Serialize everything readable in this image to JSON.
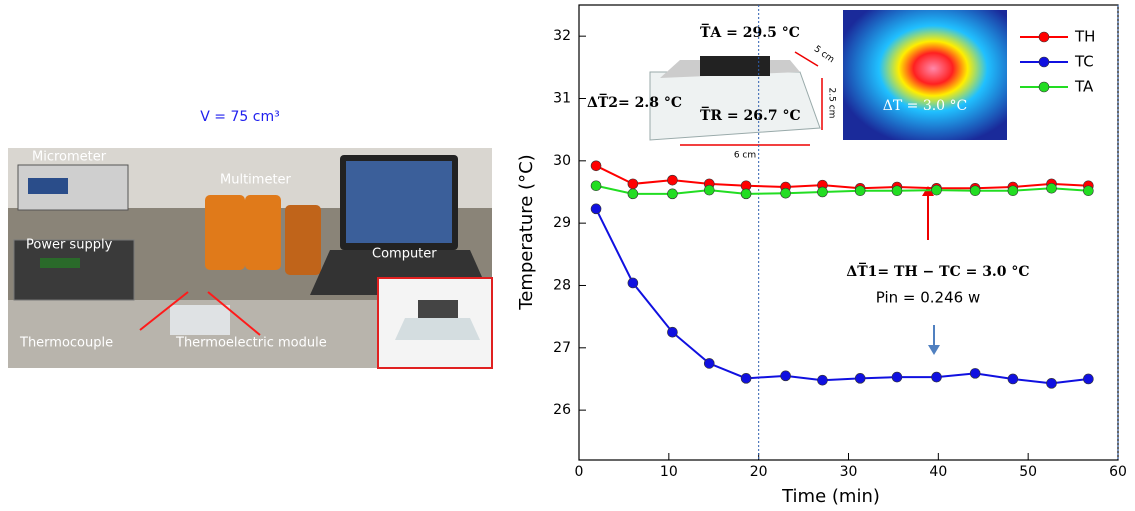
{
  "chart_data": {
    "type": "line",
    "xlabel": "Time (min)",
    "ylabel": "Temperature (°C)",
    "xlim": [
      0,
      60
    ],
    "xticks": [
      0,
      10,
      20,
      30,
      40,
      50,
      60
    ],
    "ylim": [
      25.2,
      32.5
    ],
    "yticks": [
      26,
      27,
      28,
      29,
      30,
      31,
      32
    ],
    "reference_lines_x": [
      20,
      60
    ],
    "x": [
      1.9,
      6,
      10.4,
      14.5,
      18.6,
      23,
      27.1,
      31.3,
      35.4,
      39.8,
      44.1,
      48.3,
      52.6,
      56.7
    ],
    "series": [
      {
        "name": "TH",
        "color": "#ff0000",
        "values": [
          29.92,
          29.63,
          29.69,
          29.63,
          29.6,
          29.58,
          29.61,
          29.56,
          29.58,
          29.56,
          29.56,
          29.58,
          29.63,
          29.6
        ]
      },
      {
        "name": "TC",
        "color": "#1010e0",
        "values": [
          29.23,
          28.04,
          27.25,
          26.75,
          26.51,
          26.55,
          26.48,
          26.51,
          26.53,
          26.53,
          26.59,
          26.5,
          26.43,
          26.5
        ]
      },
      {
        "name": "TA",
        "color": "#22dd22",
        "values": [
          29.6,
          29.47,
          29.47,
          29.53,
          29.47,
          29.48,
          29.5,
          29.52,
          29.52,
          29.53,
          29.52,
          29.52,
          29.56,
          29.52
        ]
      }
    ],
    "annotations": {
      "volume": "V = 75 cm³",
      "micrometer": "Micrometer",
      "multimeter": "Multimeter",
      "power_supply": "Power supply",
      "computer": "Computer",
      "thermocouple": "Thermocouple",
      "module": "Thermoelectric module",
      "t_a": "T̅A = 29.5 °C",
      "dt2": "ΔT̅2= 2.8 °C",
      "t_r": "T̅R = 26.7 °C",
      "dim_depth": "5 cm",
      "dim_height": "2.5 cm",
      "dim_width": "6 cm",
      "dt_ir": "ΔT = 3.0 °C",
      "dt1": "ΔT̅1= TH − TC = 3.0 °C",
      "pin": "Pin = 0.246 w"
    }
  }
}
